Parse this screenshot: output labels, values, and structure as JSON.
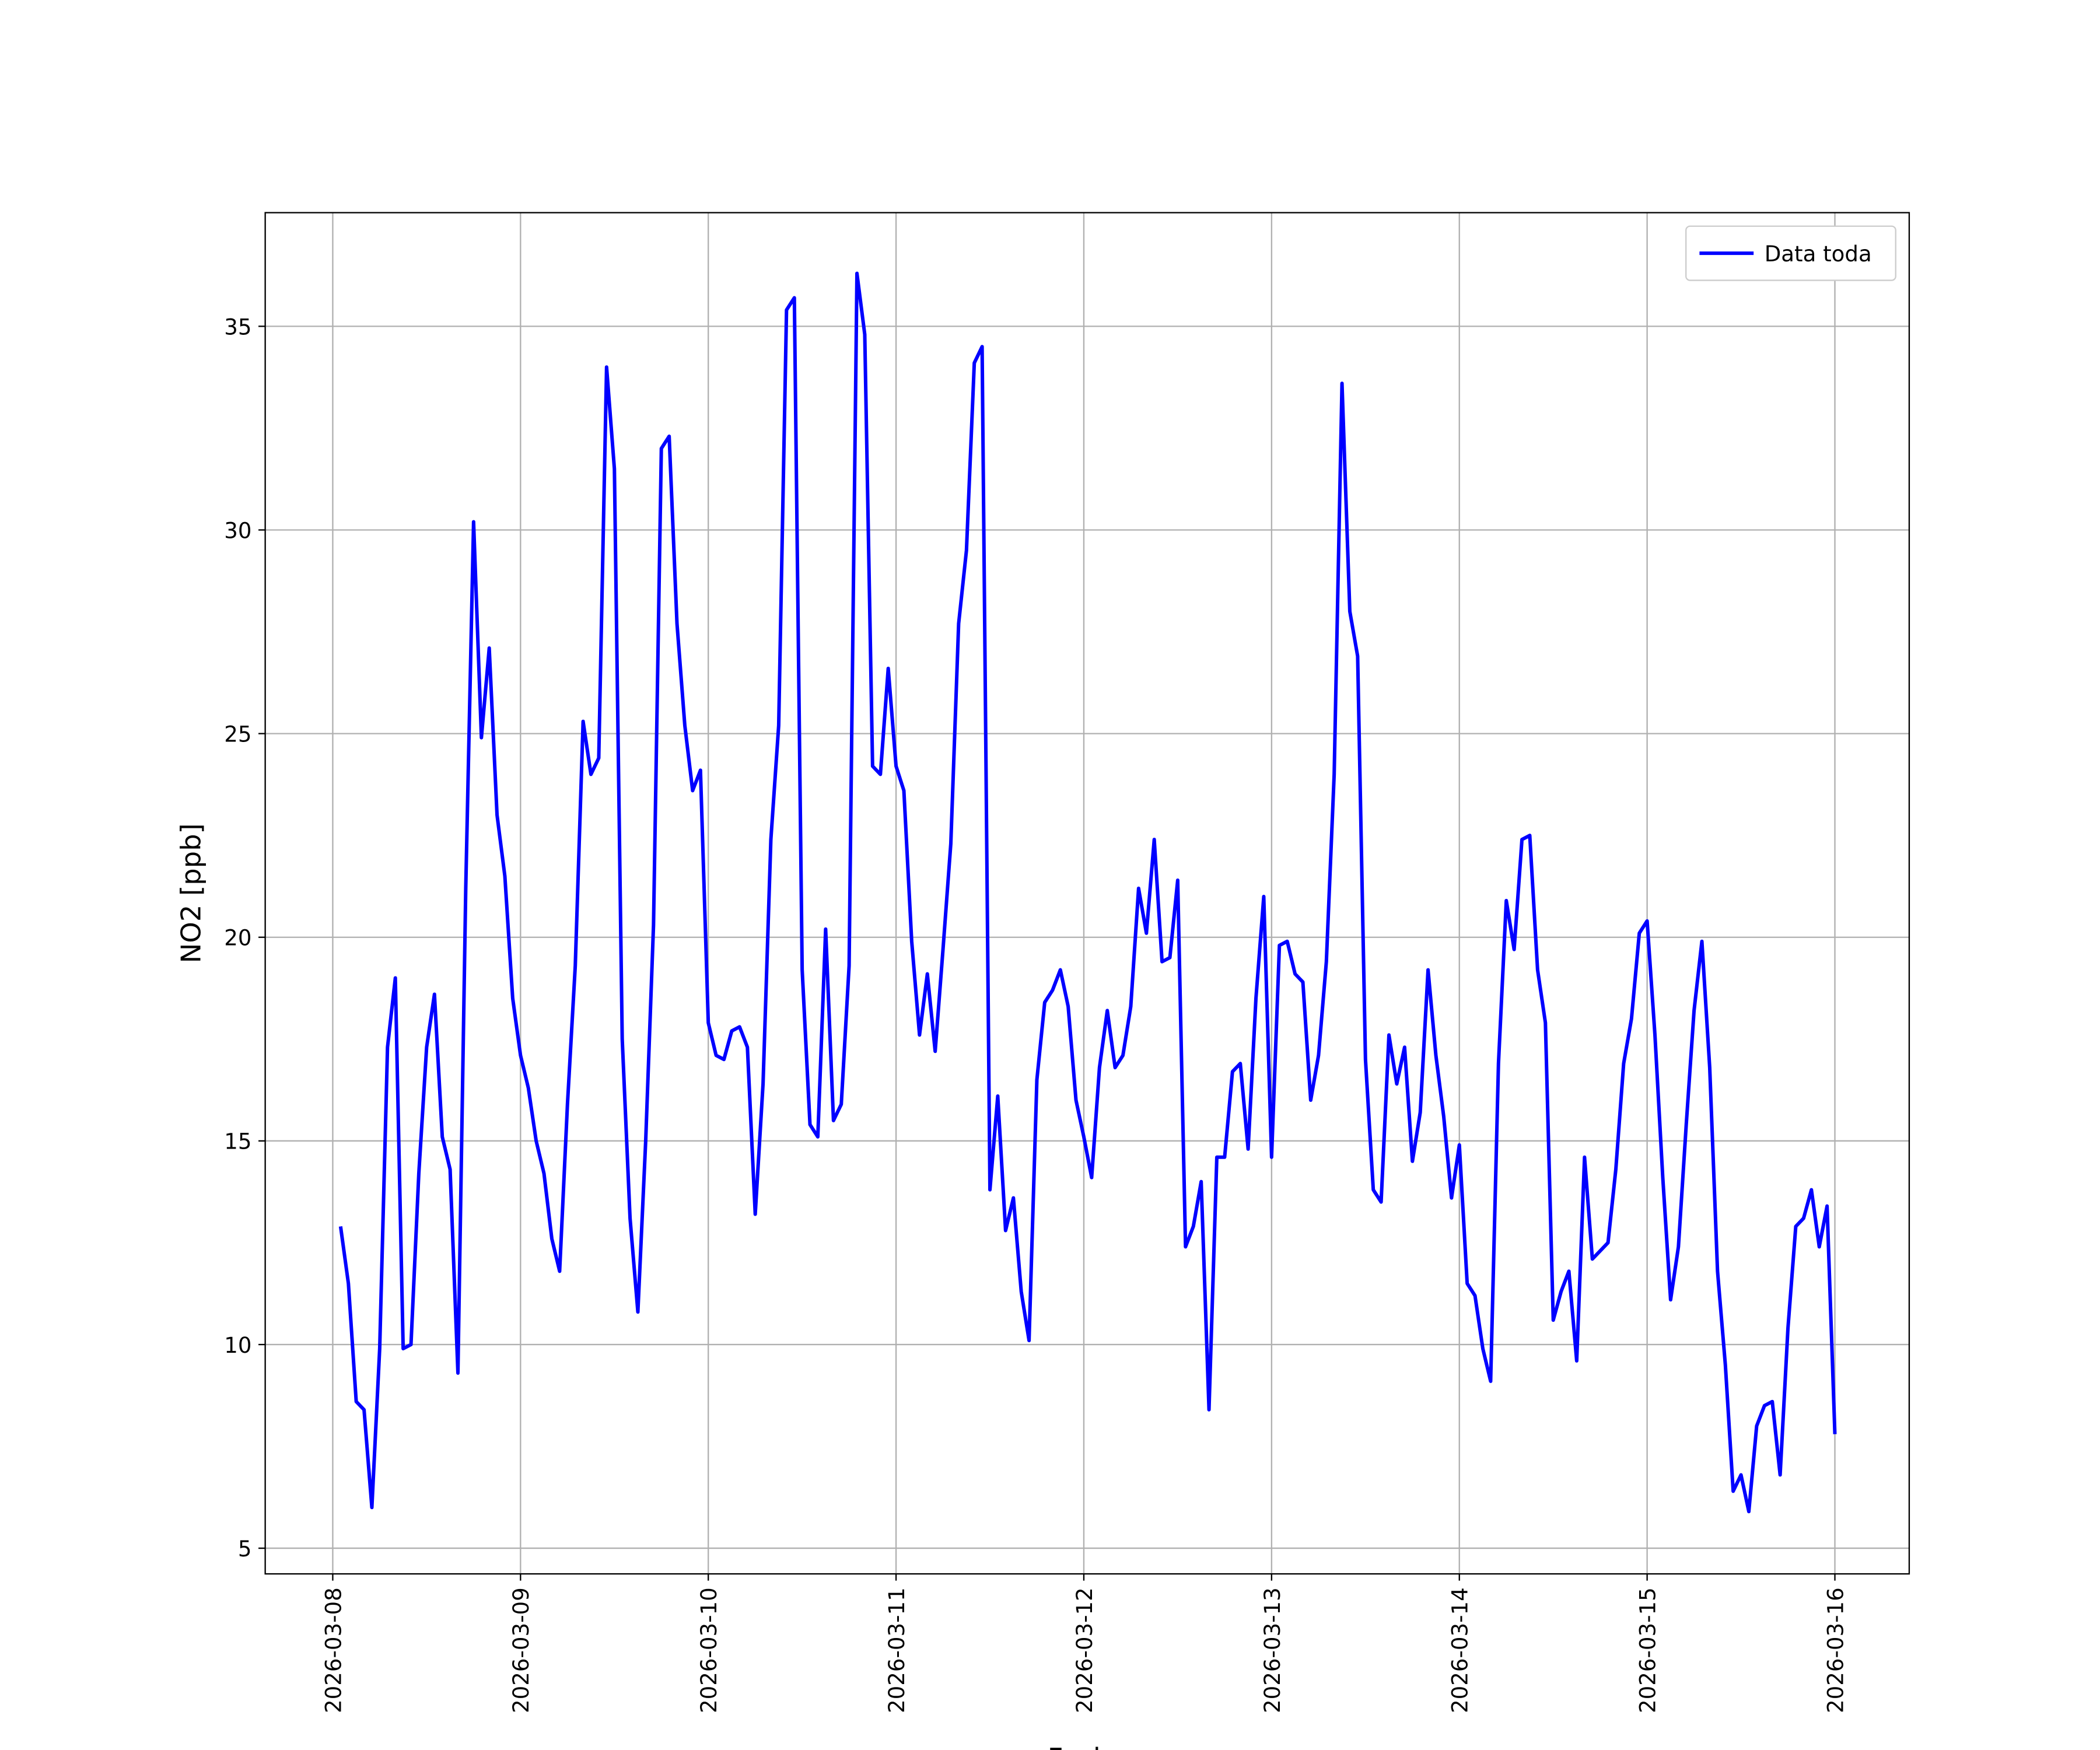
{
  "chart_data": {
    "type": "line",
    "xlabel": "Fecha",
    "ylabel": "NO2 [ppb]",
    "xlim": [
      "2026-03-07T15:22",
      "2026-03-16T09:30"
    ],
    "xticks": [
      "2026-03-08",
      "2026-03-09",
      "2026-03-10",
      "2026-03-11",
      "2026-03-12",
      "2026-03-13",
      "2026-03-14",
      "2026-03-15",
      "2026-03-16"
    ],
    "ylim": [
      4.37,
      37.79
    ],
    "yticks": [
      5,
      10,
      15,
      20,
      25,
      30,
      35
    ],
    "grid": true,
    "legend": "upper right",
    "x": [
      "2026-03-08T01:00",
      "2026-03-08T02:00",
      "2026-03-08T03:00",
      "2026-03-08T04:00",
      "2026-03-08T05:00",
      "2026-03-08T06:00",
      "2026-03-08T07:00",
      "2026-03-08T08:00",
      "2026-03-08T09:00",
      "2026-03-08T10:00",
      "2026-03-08T11:00",
      "2026-03-08T12:00",
      "2026-03-08T13:00",
      "2026-03-08T14:00",
      "2026-03-08T15:00",
      "2026-03-08T16:00",
      "2026-03-08T17:00",
      "2026-03-08T18:00",
      "2026-03-08T19:00",
      "2026-03-08T20:00",
      "2026-03-08T21:00",
      "2026-03-08T22:00",
      "2026-03-08T23:00",
      "2026-03-09T00:00",
      "2026-03-09T01:00",
      "2026-03-09T02:00",
      "2026-03-09T03:00",
      "2026-03-09T04:00",
      "2026-03-09T05:00",
      "2026-03-09T06:00",
      "2026-03-09T07:00",
      "2026-03-09T08:00",
      "2026-03-09T09:00",
      "2026-03-09T10:00",
      "2026-03-09T11:00",
      "2026-03-09T12:00",
      "2026-03-09T13:00",
      "2026-03-09T14:00",
      "2026-03-09T15:00",
      "2026-03-09T16:00",
      "2026-03-09T17:00",
      "2026-03-09T18:00",
      "2026-03-09T19:00",
      "2026-03-09T20:00",
      "2026-03-09T21:00",
      "2026-03-09T22:00",
      "2026-03-09T23:00",
      "2026-03-10T00:00",
      "2026-03-10T01:00",
      "2026-03-10T02:00",
      "2026-03-10T03:00",
      "2026-03-10T04:00",
      "2026-03-10T05:00",
      "2026-03-10T06:00",
      "2026-03-10T07:00",
      "2026-03-10T08:00",
      "2026-03-10T09:00",
      "2026-03-10T10:00",
      "2026-03-10T11:00",
      "2026-03-10T12:00",
      "2026-03-10T13:00",
      "2026-03-10T14:00",
      "2026-03-10T15:00",
      "2026-03-10T16:00",
      "2026-03-10T17:00",
      "2026-03-10T18:00",
      "2026-03-10T19:00",
      "2026-03-10T20:00",
      "2026-03-10T21:00",
      "2026-03-10T22:00",
      "2026-03-10T23:00",
      "2026-03-11T00:00",
      "2026-03-11T01:00",
      "2026-03-11T02:00",
      "2026-03-11T03:00",
      "2026-03-11T04:00",
      "2026-03-11T05:00",
      "2026-03-11T06:00",
      "2026-03-11T07:00",
      "2026-03-11T08:00",
      "2026-03-11T09:00",
      "2026-03-11T10:00",
      "2026-03-11T11:00",
      "2026-03-11T12:00",
      "2026-03-11T13:00",
      "2026-03-11T14:00",
      "2026-03-11T15:00",
      "2026-03-11T16:00",
      "2026-03-11T17:00",
      "2026-03-11T18:00",
      "2026-03-11T19:00",
      "2026-03-11T20:00",
      "2026-03-11T21:00",
      "2026-03-11T22:00",
      "2026-03-11T23:00",
      "2026-03-12T00:00",
      "2026-03-12T01:00",
      "2026-03-12T02:00",
      "2026-03-12T03:00",
      "2026-03-12T04:00",
      "2026-03-12T05:00",
      "2026-03-12T06:00",
      "2026-03-12T07:00",
      "2026-03-12T08:00",
      "2026-03-12T09:00",
      "2026-03-12T10:00",
      "2026-03-12T11:00",
      "2026-03-12T12:00",
      "2026-03-12T13:00",
      "2026-03-12T14:00",
      "2026-03-12T15:00",
      "2026-03-12T16:00",
      "2026-03-12T17:00",
      "2026-03-12T18:00",
      "2026-03-12T19:00",
      "2026-03-12T20:00",
      "2026-03-12T21:00",
      "2026-03-12T22:00",
      "2026-03-12T23:00",
      "2026-03-13T00:00",
      "2026-03-13T01:00",
      "2026-03-13T02:00",
      "2026-03-13T03:00",
      "2026-03-13T04:00",
      "2026-03-13T05:00",
      "2026-03-13T06:00",
      "2026-03-13T07:00",
      "2026-03-13T08:00",
      "2026-03-13T09:00",
      "2026-03-13T10:00",
      "2026-03-13T11:00",
      "2026-03-13T12:00",
      "2026-03-13T13:00",
      "2026-03-13T14:00",
      "2026-03-13T15:00",
      "2026-03-13T16:00",
      "2026-03-13T17:00",
      "2026-03-13T18:00",
      "2026-03-13T19:00",
      "2026-03-13T20:00",
      "2026-03-13T21:00",
      "2026-03-13T22:00",
      "2026-03-13T23:00",
      "2026-03-14T00:00",
      "2026-03-14T01:00",
      "2026-03-14T02:00",
      "2026-03-14T03:00",
      "2026-03-14T04:00",
      "2026-03-14T05:00",
      "2026-03-14T06:00",
      "2026-03-14T07:00",
      "2026-03-14T08:00",
      "2026-03-14T09:00",
      "2026-03-14T10:00",
      "2026-03-14T11:00",
      "2026-03-14T12:00",
      "2026-03-14T13:00",
      "2026-03-14T14:00",
      "2026-03-14T15:00",
      "2026-03-14T16:00",
      "2026-03-14T17:00",
      "2026-03-14T18:00",
      "2026-03-14T19:00",
      "2026-03-14T20:00",
      "2026-03-14T21:00",
      "2026-03-14T22:00",
      "2026-03-14T23:00",
      "2026-03-15T00:00",
      "2026-03-15T01:00",
      "2026-03-15T02:00",
      "2026-03-15T03:00",
      "2026-03-15T04:00",
      "2026-03-15T05:00",
      "2026-03-15T06:00",
      "2026-03-15T07:00",
      "2026-03-15T08:00",
      "2026-03-15T09:00",
      "2026-03-15T10:00",
      "2026-03-15T11:00",
      "2026-03-15T12:00",
      "2026-03-15T13:00",
      "2026-03-15T14:00",
      "2026-03-15T15:00",
      "2026-03-15T16:00",
      "2026-03-15T17:00",
      "2026-03-15T18:00",
      "2026-03-15T19:00",
      "2026-03-15T20:00",
      "2026-03-15T21:00",
      "2026-03-15T22:00",
      "2026-03-15T23:00",
      "2026-03-16T00:00"
    ],
    "series": [
      {
        "name": "Data toda",
        "color": "#0000ff",
        "values": [
          12.9,
          11.5,
          8.6,
          8.4,
          6.0,
          9.9,
          17.3,
          19.0,
          9.9,
          10.0,
          14.2,
          17.3,
          18.6,
          15.1,
          14.3,
          9.3,
          21.2,
          30.2,
          24.9,
          27.1,
          23.0,
          21.5,
          18.5,
          17.1,
          16.3,
          15.0,
          14.2,
          12.6,
          11.8,
          15.9,
          19.3,
          25.3,
          24.0,
          24.4,
          34.0,
          31.5,
          17.5,
          13.1,
          10.8,
          15.0,
          20.3,
          32.0,
          32.3,
          27.7,
          25.2,
          23.6,
          24.1,
          17.9,
          17.1,
          17.0,
          17.7,
          17.8,
          17.3,
          13.2,
          16.4,
          22.4,
          25.2,
          35.4,
          35.7,
          19.2,
          15.4,
          15.1,
          20.2,
          15.5,
          15.9,
          19.3,
          36.3,
          34.8,
          24.2,
          24.0,
          26.6,
          24.2,
          23.6,
          19.9,
          17.6,
          19.1,
          17.2,
          19.7,
          22.3,
          27.7,
          29.5,
          34.1,
          34.5,
          13.8,
          16.1,
          12.8,
          13.6,
          11.3,
          10.1,
          16.5,
          18.4,
          18.7,
          19.2,
          18.3,
          16.0,
          15.1,
          14.1,
          16.8,
          18.2,
          16.8,
          17.1,
          18.3,
          21.2,
          20.1,
          22.4,
          19.4,
          19.5,
          21.4,
          12.4,
          12.9,
          14.0,
          8.4,
          14.6,
          14.6,
          16.7,
          16.9,
          14.8,
          18.5,
          21.0,
          14.6,
          19.8,
          19.9,
          19.1,
          18.9,
          16.0,
          17.1,
          19.4,
          24.0,
          33.6,
          28.0,
          26.9,
          17.0,
          13.8,
          13.5,
          17.6,
          16.4,
          17.3,
          14.5,
          15.7,
          19.2,
          17.1,
          15.6,
          13.6,
          14.9,
          11.5,
          11.2,
          9.9,
          9.1,
          16.9,
          20.9,
          19.7,
          22.4,
          22.5,
          19.2,
          17.9,
          10.6,
          11.3,
          11.8,
          9.6,
          14.6,
          12.1,
          12.3,
          12.5,
          14.3,
          16.9,
          18.0,
          20.1,
          20.4,
          17.6,
          14.1,
          11.1,
          12.4,
          15.4,
          18.2,
          19.9,
          16.8,
          11.8,
          9.5,
          6.4,
          6.8,
          5.9,
          8.0,
          8.5,
          8.6,
          6.8,
          10.4,
          12.9,
          13.1,
          13.8,
          12.4,
          13.4,
          7.8
        ]
      }
    ]
  }
}
